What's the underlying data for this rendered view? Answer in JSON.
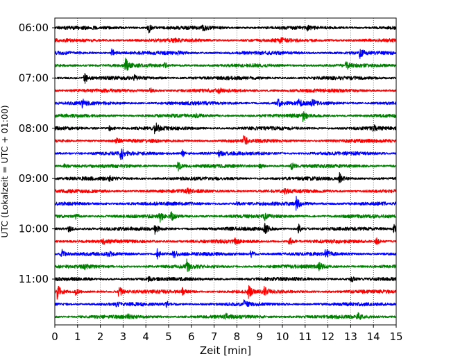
{
  "chart_data": {
    "type": "line",
    "xlabel": "Zeit  [min]",
    "ylabel": "UTC (Lokalzeit = UTC + 01:00)",
    "xlim": [
      0,
      15
    ],
    "x_ticks": [
      0,
      1,
      2,
      3,
      4,
      5,
      6,
      7,
      8,
      9,
      10,
      11,
      12,
      13,
      14,
      15
    ],
    "y_tick_labels": [
      "06:00",
      "07:00",
      "08:00",
      "09:00",
      "10:00",
      "11:00"
    ],
    "rows_per_hour": 4,
    "row_minutes": 15,
    "grid": "vertical dotted at each minute",
    "color_cycle": [
      "#000000",
      "#ff0000",
      "#0000ff",
      "#008000"
    ],
    "traces": [
      {
        "start": "06:00",
        "color": "#000000",
        "events": [
          {
            "t": 4.1,
            "amp": 1.0
          },
          {
            "t": 6.5,
            "amp": 0.4
          },
          {
            "t": 11.1,
            "amp": 0.3
          }
        ]
      },
      {
        "start": "06:15",
        "color": "#ff0000",
        "events": [
          {
            "t": 5.2,
            "amp": 0.3
          },
          {
            "t": 9.9,
            "amp": 0.3
          }
        ]
      },
      {
        "start": "06:30",
        "color": "#0000ff",
        "events": [
          {
            "t": 2.5,
            "amp": 0.6
          },
          {
            "t": 13.4,
            "amp": 0.8
          },
          {
            "t": 5.4,
            "amp": 0.3
          }
        ]
      },
      {
        "start": "06:45",
        "color": "#008000",
        "events": [
          {
            "t": 3.1,
            "amp": 1.2
          },
          {
            "t": 12.8,
            "amp": 0.7
          },
          {
            "t": 4.8,
            "amp": 0.4
          }
        ]
      },
      {
        "start": "07:00",
        "color": "#000000",
        "events": [
          {
            "t": 1.3,
            "amp": 1.0
          },
          {
            "t": 3.5,
            "amp": 0.4
          }
        ]
      },
      {
        "start": "07:15",
        "color": "#ff0000",
        "events": [
          {
            "t": 4.2,
            "amp": 0.5
          },
          {
            "t": 7.2,
            "amp": 0.3
          }
        ]
      },
      {
        "start": "07:30",
        "color": "#0000ff",
        "events": [
          {
            "t": 1.2,
            "amp": 0.6
          },
          {
            "t": 9.8,
            "amp": 0.7
          },
          {
            "t": 10.7,
            "amp": 0.7
          },
          {
            "t": 11.3,
            "amp": 0.6
          }
        ]
      },
      {
        "start": "07:45",
        "color": "#008000",
        "events": [
          {
            "t": 10.9,
            "amp": 0.8
          },
          {
            "t": 6.2,
            "amp": 0.3
          }
        ]
      },
      {
        "start": "08:00",
        "color": "#000000",
        "events": [
          {
            "t": 4.4,
            "amp": 1.1
          },
          {
            "t": 2.4,
            "amp": 0.5
          },
          {
            "t": 14.0,
            "amp": 0.5
          }
        ]
      },
      {
        "start": "08:15",
        "color": "#ff0000",
        "events": [
          {
            "t": 8.3,
            "amp": 0.8
          },
          {
            "t": 2.7,
            "amp": 0.4
          }
        ]
      },
      {
        "start": "08:30",
        "color": "#0000ff",
        "events": [
          {
            "t": 2.9,
            "amp": 1.2
          },
          {
            "t": 5.6,
            "amp": 0.6
          },
          {
            "t": 7.2,
            "amp": 0.5
          }
        ]
      },
      {
        "start": "08:45",
        "color": "#008000",
        "events": [
          {
            "t": 5.4,
            "amp": 0.9
          },
          {
            "t": 9.0,
            "amp": 0.6
          },
          {
            "t": 10.4,
            "amp": 0.7
          },
          {
            "t": 0.4,
            "amp": 0.4
          }
        ]
      },
      {
        "start": "09:00",
        "color": "#000000",
        "events": [
          {
            "t": 2.4,
            "amp": 0.4
          },
          {
            "t": 12.5,
            "amp": 0.9
          }
        ]
      },
      {
        "start": "09:15",
        "color": "#ff0000",
        "events": [
          {
            "t": 5.8,
            "amp": 0.4
          },
          {
            "t": 10.1,
            "amp": 0.3
          }
        ]
      },
      {
        "start": "09:30",
        "color": "#0000ff",
        "events": [
          {
            "t": 10.6,
            "amp": 1.1
          },
          {
            "t": 8.0,
            "amp": 0.3
          }
        ]
      },
      {
        "start": "09:45",
        "color": "#008000",
        "events": [
          {
            "t": 4.6,
            "amp": 1.0
          },
          {
            "t": 5.1,
            "amp": 0.8
          },
          {
            "t": 9.2,
            "amp": 0.6
          },
          {
            "t": 0.9,
            "amp": 0.4
          }
        ]
      },
      {
        "start": "10:00",
        "color": "#000000",
        "events": [
          {
            "t": 9.2,
            "amp": 1.3
          },
          {
            "t": 0.6,
            "amp": 0.6
          },
          {
            "t": 4.4,
            "amp": 0.7
          },
          {
            "t": 10.7,
            "amp": 0.8
          },
          {
            "t": 14.9,
            "amp": 0.8
          }
        ]
      },
      {
        "start": "10:15",
        "color": "#ff0000",
        "events": [
          {
            "t": 10.3,
            "amp": 0.8
          },
          {
            "t": 14.1,
            "amp": 0.7
          },
          {
            "t": 2.1,
            "amp": 0.4
          },
          {
            "t": 7.9,
            "amp": 0.4
          }
        ]
      },
      {
        "start": "10:30",
        "color": "#0000ff",
        "events": [
          {
            "t": 0.3,
            "amp": 0.8
          },
          {
            "t": 4.5,
            "amp": 0.8
          },
          {
            "t": 5.2,
            "amp": 0.8
          },
          {
            "t": 8.6,
            "amp": 0.7
          },
          {
            "t": 11.9,
            "amp": 0.8
          },
          {
            "t": 2.3,
            "amp": 0.5
          }
        ]
      },
      {
        "start": "10:45",
        "color": "#008000",
        "events": [
          {
            "t": 5.8,
            "amp": 1.0
          },
          {
            "t": 11.6,
            "amp": 0.8
          },
          {
            "t": 1.3,
            "amp": 0.4
          }
        ]
      },
      {
        "start": "11:00",
        "color": "#000000",
        "events": [
          {
            "t": 13.0,
            "amp": 0.6
          },
          {
            "t": 4.1,
            "amp": 0.3
          }
        ]
      },
      {
        "start": "11:15",
        "color": "#ff0000",
        "events": [
          {
            "t": 0.1,
            "amp": 1.2
          },
          {
            "t": 2.8,
            "amp": 1.0
          },
          {
            "t": 8.5,
            "amp": 1.1
          },
          {
            "t": 9.2,
            "amp": 1.0
          },
          {
            "t": 5.6,
            "amp": 0.6
          },
          {
            "t": 0.9,
            "amp": 0.5
          }
        ]
      },
      {
        "start": "11:30",
        "color": "#0000ff",
        "events": [
          {
            "t": 4.9,
            "amp": 0.5
          },
          {
            "t": 8.3,
            "amp": 0.5
          },
          {
            "t": 2.7,
            "amp": 0.3
          }
        ]
      },
      {
        "start": "11:45",
        "color": "#008000",
        "events": [
          {
            "t": 13.3,
            "amp": 0.6
          },
          {
            "t": 7.5,
            "amp": 0.4
          },
          {
            "t": 3.2,
            "amp": 0.3
          }
        ]
      }
    ]
  }
}
